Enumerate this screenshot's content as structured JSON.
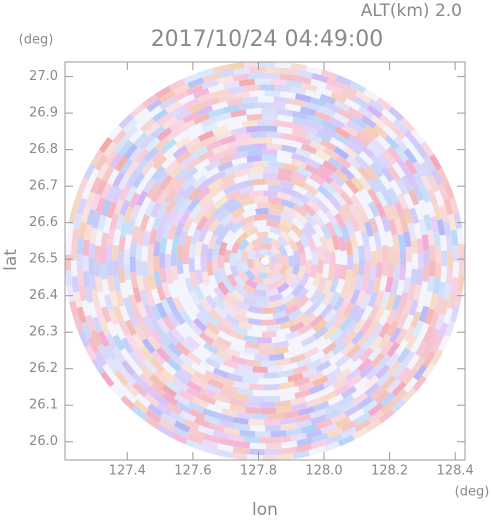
{
  "chart_data": {
    "type": "radar-ppi",
    "title": "2017/10/24 04:49:00",
    "subtitle": "ALT(km) 2.0",
    "x_label": "lon",
    "y_label": "lat",
    "x_unit": "(deg)",
    "y_unit": "(deg)",
    "xlim": [
      127.21,
      128.43
    ],
    "ylim": [
      25.95,
      27.04
    ],
    "xticks": [
      127.4,
      127.6,
      127.8,
      {
        "value": 128,
        "label": "128.0"
      },
      128.2,
      128.4
    ],
    "yticks": [
      {
        "value": 26,
        "label": "26.0"
      },
      26.1,
      26.2,
      26.3,
      26.4,
      26.5,
      26.6,
      26.7,
      26.8,
      26.9,
      {
        "value": 27,
        "label": "27.0"
      }
    ]
  }
}
